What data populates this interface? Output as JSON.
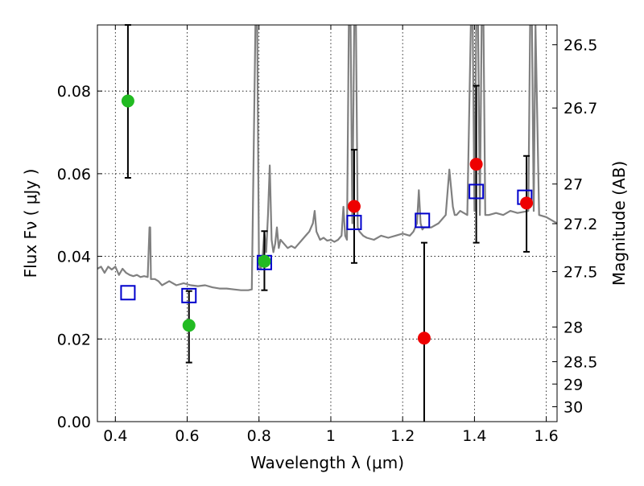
{
  "chart_data": {
    "type": "scatter",
    "xlabel": "Wavelength  λ (μm)",
    "ylabel": "Flux  Fν  ( μJy )",
    "y2label": "Magnitude (AB)",
    "xlim": [
      0.35,
      1.63
    ],
    "ylim": [
      0.0,
      0.096
    ],
    "x_ticks": [
      0.4,
      0.6,
      0.8,
      1.0,
      1.2,
      1.4,
      1.6
    ],
    "x_tick_labels": [
      "0.4",
      "0.6",
      "0.8",
      "1",
      "1.2",
      "1.4",
      "1.6"
    ],
    "y_ticks": [
      0.0,
      0.02,
      0.04,
      0.06,
      0.08
    ],
    "y_tick_labels": [
      "0.00",
      "0.02",
      "0.04",
      "0.06",
      "0.08"
    ],
    "y2_ticks": [
      {
        "label": "26.5",
        "flux": 0.0912
      },
      {
        "label": "26.7",
        "flux": 0.0759
      },
      {
        "label": "27",
        "flux": 0.0575
      },
      {
        "label": "27.2",
        "flux": 0.0479
      },
      {
        "label": "27.5",
        "flux": 0.0363
      },
      {
        "label": "28",
        "flux": 0.0229
      },
      {
        "label": "28.5",
        "flux": 0.0145
      },
      {
        "label": "29",
        "flux": 0.0091
      },
      {
        "label": "30",
        "flux": 0.0036
      }
    ],
    "grid": true,
    "colors": {
      "model": "#808080",
      "model_points": "#0000cc",
      "green": "#22bb22",
      "red": "#ee0000",
      "errorbar": "#000000"
    },
    "model_spectrum": {
      "x": [
        0.35,
        0.36,
        0.37,
        0.38,
        0.39,
        0.4,
        0.41,
        0.42,
        0.43,
        0.44,
        0.45,
        0.46,
        0.47,
        0.48,
        0.49,
        0.495,
        0.497,
        0.499,
        0.5,
        0.51,
        0.52,
        0.53,
        0.55,
        0.57,
        0.59,
        0.61,
        0.63,
        0.65,
        0.67,
        0.69,
        0.71,
        0.73,
        0.75,
        0.77,
        0.78,
        0.79,
        0.795,
        0.8,
        0.805,
        0.81,
        0.815,
        0.82,
        0.825,
        0.83,
        0.835,
        0.84,
        0.845,
        0.85,
        0.855,
        0.86,
        0.87,
        0.88,
        0.89,
        0.9,
        0.91,
        0.92,
        0.93,
        0.94,
        0.95,
        0.955,
        0.96,
        0.97,
        0.98,
        0.99,
        1.0,
        1.01,
        1.02,
        1.03,
        1.035,
        1.04,
        1.045,
        1.05,
        1.055,
        1.06,
        1.065,
        1.07,
        1.075,
        1.08,
        1.09,
        1.1,
        1.12,
        1.14,
        1.16,
        1.18,
        1.2,
        1.22,
        1.23,
        1.24,
        1.245,
        1.25,
        1.255,
        1.26,
        1.28,
        1.3,
        1.32,
        1.33,
        1.34,
        1.345,
        1.35,
        1.36,
        1.38,
        1.39,
        1.395,
        1.4,
        1.405,
        1.41,
        1.415,
        1.42,
        1.425,
        1.43,
        1.44,
        1.46,
        1.48,
        1.5,
        1.52,
        1.54,
        1.55,
        1.555,
        1.56,
        1.565,
        1.57,
        1.58,
        1.6,
        1.62,
        1.63
      ],
      "y": [
        0.037,
        0.0375,
        0.036,
        0.0375,
        0.0368,
        0.0375,
        0.0355,
        0.037,
        0.036,
        0.0355,
        0.0352,
        0.0355,
        0.035,
        0.0352,
        0.035,
        0.047,
        0.047,
        0.0345,
        0.0345,
        0.0345,
        0.034,
        0.033,
        0.034,
        0.033,
        0.0335,
        0.033,
        0.0328,
        0.033,
        0.0325,
        0.0322,
        0.0322,
        0.032,
        0.0318,
        0.0318,
        0.032,
        0.096,
        0.096,
        0.038,
        0.037,
        0.04,
        0.046,
        0.041,
        0.05,
        0.062,
        0.044,
        0.041,
        0.043,
        0.047,
        0.042,
        0.044,
        0.043,
        0.042,
        0.0425,
        0.042,
        0.043,
        0.044,
        0.045,
        0.046,
        0.048,
        0.051,
        0.046,
        0.044,
        0.0445,
        0.0438,
        0.044,
        0.0435,
        0.044,
        0.045,
        0.052,
        0.045,
        0.044,
        0.096,
        0.096,
        0.048,
        0.096,
        0.096,
        0.047,
        0.046,
        0.045,
        0.0445,
        0.044,
        0.045,
        0.0445,
        0.045,
        0.0455,
        0.045,
        0.046,
        0.048,
        0.056,
        0.048,
        0.0465,
        0.047,
        0.047,
        0.048,
        0.05,
        0.061,
        0.052,
        0.05,
        0.05,
        0.051,
        0.05,
        0.096,
        0.096,
        0.051,
        0.096,
        0.096,
        0.05,
        0.096,
        0.096,
        0.05,
        0.05,
        0.0505,
        0.05,
        0.051,
        0.0505,
        0.0508,
        0.051,
        0.096,
        0.096,
        0.051,
        0.096,
        0.05,
        0.0495,
        0.0485,
        0.048
      ]
    },
    "series": [
      {
        "name": "",
        "marker": "open-square",
        "points": [
          {
            "x": 0.435,
            "y": 0.0312
          },
          {
            "x": 0.605,
            "y": 0.0305
          },
          {
            "x": 0.815,
            "y": 0.0385
          },
          {
            "x": 1.065,
            "y": 0.0482
          },
          {
            "x": 1.255,
            "y": 0.0487
          },
          {
            "x": 1.405,
            "y": 0.0557
          },
          {
            "x": 1.54,
            "y": 0.0543
          }
        ]
      },
      {
        "name": "",
        "marker": "filled-circle-green",
        "points": [
          {
            "x": 0.435,
            "y": 0.0776,
            "err_low": 0.059,
            "err_high": 0.096
          },
          {
            "x": 0.605,
            "y": 0.0233,
            "err_low": 0.0143,
            "err_high": 0.0316
          },
          {
            "x": 0.815,
            "y": 0.0388,
            "err_low": 0.0318,
            "err_high": 0.0461
          }
        ]
      },
      {
        "name": "",
        "marker": "filled-circle-red",
        "points": [
          {
            "x": 1.065,
            "y": 0.0521,
            "err_low": 0.0384,
            "err_high": 0.0658
          },
          {
            "x": 1.26,
            "y": 0.0202,
            "err_low": 0.0,
            "err_high": 0.0433
          },
          {
            "x": 1.405,
            "y": 0.0623,
            "err_low": 0.0433,
            "err_high": 0.0813
          },
          {
            "x": 1.545,
            "y": 0.0529,
            "err_low": 0.0411,
            "err_high": 0.0643
          }
        ]
      }
    ]
  }
}
